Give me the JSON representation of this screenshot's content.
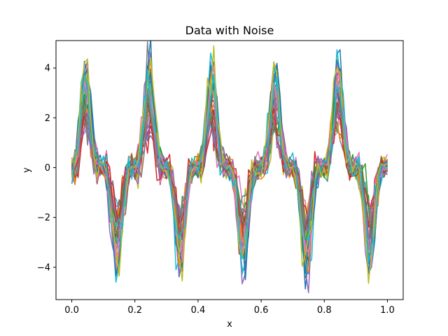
{
  "chart_data": {
    "type": "line",
    "title": "Data with Noise",
    "xlabel": "x",
    "ylabel": "y",
    "xlim": [
      -0.05,
      1.05
    ],
    "ylim": [
      -5.3,
      5.1
    ],
    "x_ticks": [
      {
        "value": 0.0,
        "label": "0.0"
      },
      {
        "value": 0.2,
        "label": "0.2"
      },
      {
        "value": 0.4,
        "label": "0.4"
      },
      {
        "value": 0.6,
        "label": "0.6"
      },
      {
        "value": 0.8,
        "label": "0.8"
      },
      {
        "value": 1.0,
        "label": "1.0"
      }
    ],
    "y_ticks": [
      {
        "value": -4,
        "label": "−4"
      },
      {
        "value": -2,
        "label": "−2"
      },
      {
        "value": 0,
        "label": "0"
      },
      {
        "value": 2,
        "label": "2"
      },
      {
        "value": 4,
        "label": "4"
      }
    ],
    "grid": false,
    "legend": "none",
    "series_count": 40,
    "points_per_series": 101,
    "x_range": [
      0,
      1
    ],
    "underlying_function": "y = sin(10*pi*x) * |sin(10*pi*x)|^3 * 3 + noise",
    "palette": [
      "#1f77b4",
      "#ff7f0e",
      "#2ca02c",
      "#d62728",
      "#9467bd",
      "#8c564b",
      "#e377c2",
      "#7f7f7f",
      "#bcbd22",
      "#17becf"
    ]
  }
}
